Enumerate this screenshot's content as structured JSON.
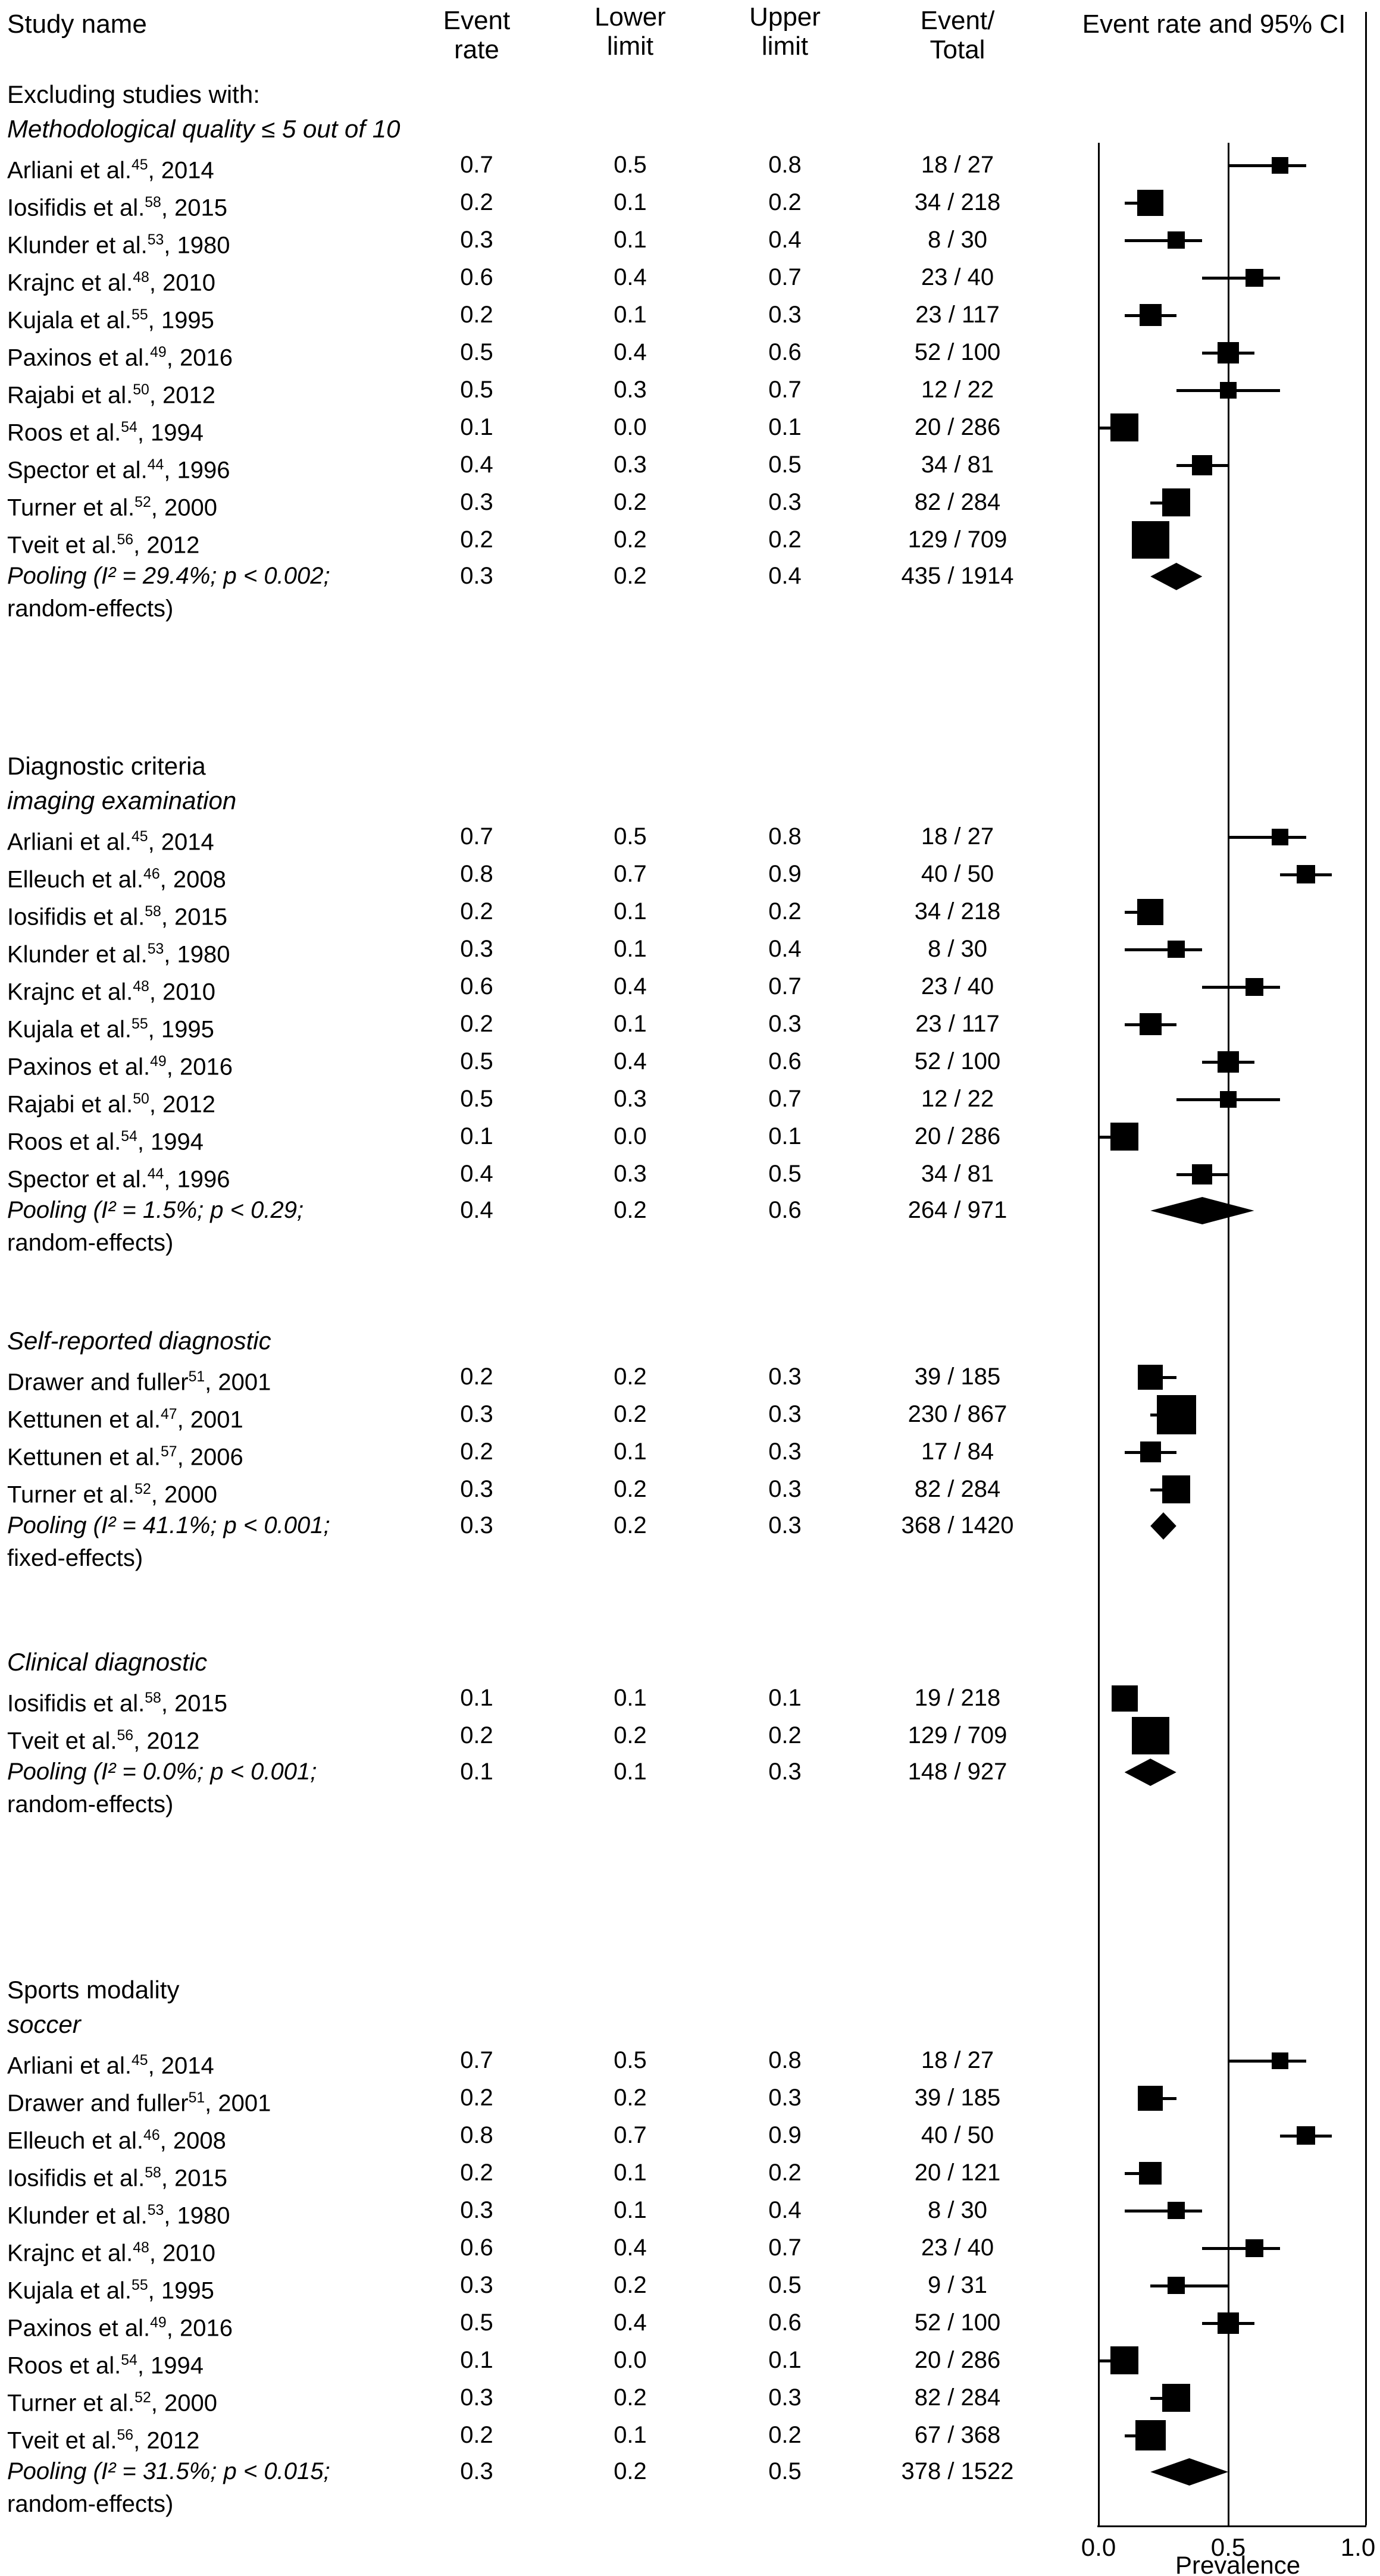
{
  "header": {
    "study_name": "Study name",
    "event_rate": "Event\nrate",
    "lower_limit": "Lower\nlimit",
    "upper_limit": "Upper\nlimit",
    "event_total": "Event/\nTotal",
    "ci_header": "Event rate and 95% CI"
  },
  "axis": {
    "ticks": [
      "0.0",
      "0.5",
      "1.0"
    ],
    "tick_values": [
      0,
      0.5,
      1
    ],
    "label": "Prevalence",
    "min": 0,
    "max": 1,
    "refline": 0.5
  },
  "colors": {
    "marker": "#000000",
    "text": "#000000",
    "background": "#ffffff"
  },
  "chart_data": {
    "type": "forest",
    "xlabel": "Prevalence",
    "xlim": [
      0,
      1
    ],
    "grid": "vertical-reference-lines at 0.0 and 0.5",
    "sections": [
      {
        "heading_lines": [
          {
            "text": "Excluding studies with:",
            "italic": false
          },
          {
            "text": "Methodological quality ≤ 5 out of 10",
            "italic": true
          }
        ],
        "rows": [
          {
            "study": "Arliani et al.",
            "ref": "45",
            "suffix": ", 2014",
            "rate": "0.7",
            "lower": "0.5",
            "upper": "0.8",
            "events": 18,
            "total": 27
          },
          {
            "study": "Iosifidis et al.",
            "ref": "58",
            "suffix": ", 2015",
            "rate": "0.2",
            "lower": "0.1",
            "upper": "0.2",
            "events": 34,
            "total": 218
          },
          {
            "study": "Klunder et al.",
            "ref": "53",
            "suffix": ", 1980",
            "rate": "0.3",
            "lower": "0.1",
            "upper": "0.4",
            "events": 8,
            "total": 30
          },
          {
            "study": "Krajnc et al.",
            "ref": "48",
            "suffix": ", 2010",
            "rate": "0.6",
            "lower": "0.4",
            "upper": "0.7",
            "events": 23,
            "total": 40
          },
          {
            "study": "Kujala et al.",
            "ref": "55",
            "suffix": ", 1995",
            "rate": "0.2",
            "lower": "0.1",
            "upper": "0.3",
            "events": 23,
            "total": 117
          },
          {
            "study": "Paxinos et al.",
            "ref": "49",
            "suffix": ", 2016",
            "rate": "0.5",
            "lower": "0.4",
            "upper": "0.6",
            "events": 52,
            "total": 100
          },
          {
            "study": "Rajabi et al.",
            "ref": "50",
            "suffix": ", 2012",
            "rate": "0.5",
            "lower": "0.3",
            "upper": "0.7",
            "events": 12,
            "total": 22
          },
          {
            "study": "Roos et al.",
            "ref": "54",
            "suffix": ", 1994",
            "rate": "0.1",
            "lower": "0.0",
            "upper": "0.1",
            "events": 20,
            "total": 286
          },
          {
            "study": "Spector et al.",
            "ref": "44",
            "suffix": ", 1996",
            "rate": "0.4",
            "lower": "0.3",
            "upper": "0.5",
            "events": 34,
            "total": 81
          },
          {
            "study": "Turner et al.",
            "ref": "52",
            "suffix": ", 2000",
            "rate": "0.3",
            "lower": "0.2",
            "upper": "0.3",
            "events": 82,
            "total": 284
          },
          {
            "study": "Tveit et al.",
            "ref": "56",
            "suffix": ", 2012",
            "rate": "0.2",
            "lower": "0.2",
            "upper": "0.2",
            "events": 129,
            "total": 709
          }
        ],
        "pooling": {
          "line1": "Pooling (I² = 29.4%; p < 0.002;",
          "line2": "random-effects)",
          "rate": "0.3",
          "lower": "0.2",
          "upper": "0.4",
          "events": 435,
          "total": 1914
        }
      },
      {
        "heading_lines": [
          {
            "text": "Diagnostic criteria",
            "italic": false
          },
          {
            "text": "imaging examination",
            "italic": true
          }
        ],
        "rows": [
          {
            "study": "Arliani et al.",
            "ref": "45",
            "suffix": ", 2014",
            "rate": "0.7",
            "lower": "0.5",
            "upper": "0.8",
            "events": 18,
            "total": 27
          },
          {
            "study": "Elleuch et al.",
            "ref": "46",
            "suffix": ", 2008",
            "rate": "0.8",
            "lower": "0.7",
            "upper": "0.9",
            "events": 40,
            "total": 50
          },
          {
            "study": "Iosifidis et al.",
            "ref": "58",
            "suffix": ", 2015",
            "rate": "0.2",
            "lower": "0.1",
            "upper": "0.2",
            "events": 34,
            "total": 218
          },
          {
            "study": "Klunder et al.",
            "ref": "53",
            "suffix": ", 1980",
            "rate": "0.3",
            "lower": "0.1",
            "upper": "0.4",
            "events": 8,
            "total": 30
          },
          {
            "study": "Krajnc et al.",
            "ref": "48",
            "suffix": ", 2010",
            "rate": "0.6",
            "lower": "0.4",
            "upper": "0.7",
            "events": 23,
            "total": 40
          },
          {
            "study": "Kujala et al.",
            "ref": "55",
            "suffix": ", 1995",
            "rate": "0.2",
            "lower": "0.1",
            "upper": "0.3",
            "events": 23,
            "total": 117
          },
          {
            "study": "Paxinos et al.",
            "ref": "49",
            "suffix": ", 2016",
            "rate": "0.5",
            "lower": "0.4",
            "upper": "0.6",
            "events": 52,
            "total": 100
          },
          {
            "study": "Rajabi et al.",
            "ref": "50",
            "suffix": ", 2012",
            "rate": "0.5",
            "lower": "0.3",
            "upper": "0.7",
            "events": 12,
            "total": 22
          },
          {
            "study": "Roos et al.",
            "ref": "54",
            "suffix": ", 1994",
            "rate": "0.1",
            "lower": "0.0",
            "upper": "0.1",
            "events": 20,
            "total": 286
          },
          {
            "study": "Spector et al.",
            "ref": "44",
            "suffix": ", 1996",
            "rate": "0.4",
            "lower": "0.3",
            "upper": "0.5",
            "events": 34,
            "total": 81
          }
        ],
        "pooling": {
          "line1": "Pooling (I² = 1.5%; p < 0.29;",
          "line2": "random-effects)",
          "rate": "0.4",
          "lower": "0.2",
          "upper": "0.6",
          "events": 264,
          "total": 971
        }
      },
      {
        "heading_lines": [
          {
            "text": "Self-reported diagnostic",
            "italic": true
          }
        ],
        "rows": [
          {
            "study": "Drawer and fuller",
            "ref": "51",
            "suffix": ", 2001",
            "rate": "0.2",
            "lower": "0.2",
            "upper": "0.3",
            "events": 39,
            "total": 185
          },
          {
            "study": "Kettunen et al.",
            "ref": "47",
            "suffix": ", 2001",
            "rate": "0.3",
            "lower": "0.2",
            "upper": "0.3",
            "events": 230,
            "total": 867
          },
          {
            "study": "Kettunen et al.",
            "ref": "57",
            "suffix": ", 2006",
            "rate": "0.2",
            "lower": "0.1",
            "upper": "0.3",
            "events": 17,
            "total": 84
          },
          {
            "study": "Turner et al.",
            "ref": "52",
            "suffix": ", 2000",
            "rate": "0.3",
            "lower": "0.2",
            "upper": "0.3",
            "events": 82,
            "total": 284
          }
        ],
        "pooling": {
          "line1": "Pooling (I² = 41.1%; p < 0.001;",
          "line2": "fixed-effects)",
          "rate": "0.3",
          "lower": "0.2",
          "upper": "0.3",
          "events": 368,
          "total": 1420
        }
      },
      {
        "heading_lines": [
          {
            "text": "Clinical diagnostic",
            "italic": true
          }
        ],
        "rows": [
          {
            "study": "Iosifidis et al.",
            "ref": "58",
            "suffix": ", 2015",
            "rate": "0.1",
            "lower": "0.1",
            "upper": "0.1",
            "events": 19,
            "total": 218
          },
          {
            "study": "Tveit et al.",
            "ref": "56",
            "suffix": ", 2012",
            "rate": "0.2",
            "lower": "0.2",
            "upper": "0.2",
            "events": 129,
            "total": 709
          }
        ],
        "pooling": {
          "line1": "Pooling (I² = 0.0%; p < 0.001;",
          "line2": "random-effects)",
          "rate": "0.1",
          "lower": "0.1",
          "upper": "0.3",
          "events": 148,
          "total": 927
        }
      },
      {
        "heading_lines": [
          {
            "text": "Sports modality",
            "italic": false
          },
          {
            "text": "soccer",
            "italic": true
          }
        ],
        "rows": [
          {
            "study": "Arliani et al.",
            "ref": "45",
            "suffix": ", 2014",
            "rate": "0.7",
            "lower": "0.5",
            "upper": "0.8",
            "events": 18,
            "total": 27
          },
          {
            "study": "Drawer and fuller",
            "ref": "51",
            "suffix": ", 2001",
            "rate": "0.2",
            "lower": "0.2",
            "upper": "0.3",
            "events": 39,
            "total": 185
          },
          {
            "study": "Elleuch et al.",
            "ref": "46",
            "suffix": ", 2008",
            "rate": "0.8",
            "lower": "0.7",
            "upper": "0.9",
            "events": 40,
            "total": 50
          },
          {
            "study": "Iosifidis et al.",
            "ref": "58",
            "suffix": ", 2015",
            "rate": "0.2",
            "lower": "0.1",
            "upper": "0.2",
            "events": 20,
            "total": 121
          },
          {
            "study": "Klunder et al.",
            "ref": "53",
            "suffix": ", 1980",
            "rate": "0.3",
            "lower": "0.1",
            "upper": "0.4",
            "events": 8,
            "total": 30
          },
          {
            "study": "Krajnc et al.",
            "ref": "48",
            "suffix": ", 2010",
            "rate": "0.6",
            "lower": "0.4",
            "upper": "0.7",
            "events": 23,
            "total": 40
          },
          {
            "study": "Kujala et al.",
            "ref": "55",
            "suffix": ", 1995",
            "rate": "0.3",
            "lower": "0.2",
            "upper": "0.5",
            "events": 9,
            "total": 31
          },
          {
            "study": "Paxinos et al.",
            "ref": "49",
            "suffix": ", 2016",
            "rate": "0.5",
            "lower": "0.4",
            "upper": "0.6",
            "events": 52,
            "total": 100
          },
          {
            "study": "Roos et al.",
            "ref": "54",
            "suffix": ", 1994",
            "rate": "0.1",
            "lower": "0.0",
            "upper": "0.1",
            "events": 20,
            "total": 286
          },
          {
            "study": "Turner et al.",
            "ref": "52",
            "suffix": ", 2000",
            "rate": "0.3",
            "lower": "0.2",
            "upper": "0.3",
            "events": 82,
            "total": 284
          },
          {
            "study": "Tveit et al.",
            "ref": "56",
            "suffix": ", 2012",
            "rate": "0.2",
            "lower": "0.1",
            "upper": "0.2",
            "events": 67,
            "total": 368
          }
        ],
        "pooling": {
          "line1": "Pooling (I² = 31.5%; p < 0.015;",
          "line2": "random-effects)",
          "rate": "0.3",
          "lower": "0.2",
          "upper": "0.5",
          "events": 378,
          "total": 1522
        }
      }
    ]
  }
}
